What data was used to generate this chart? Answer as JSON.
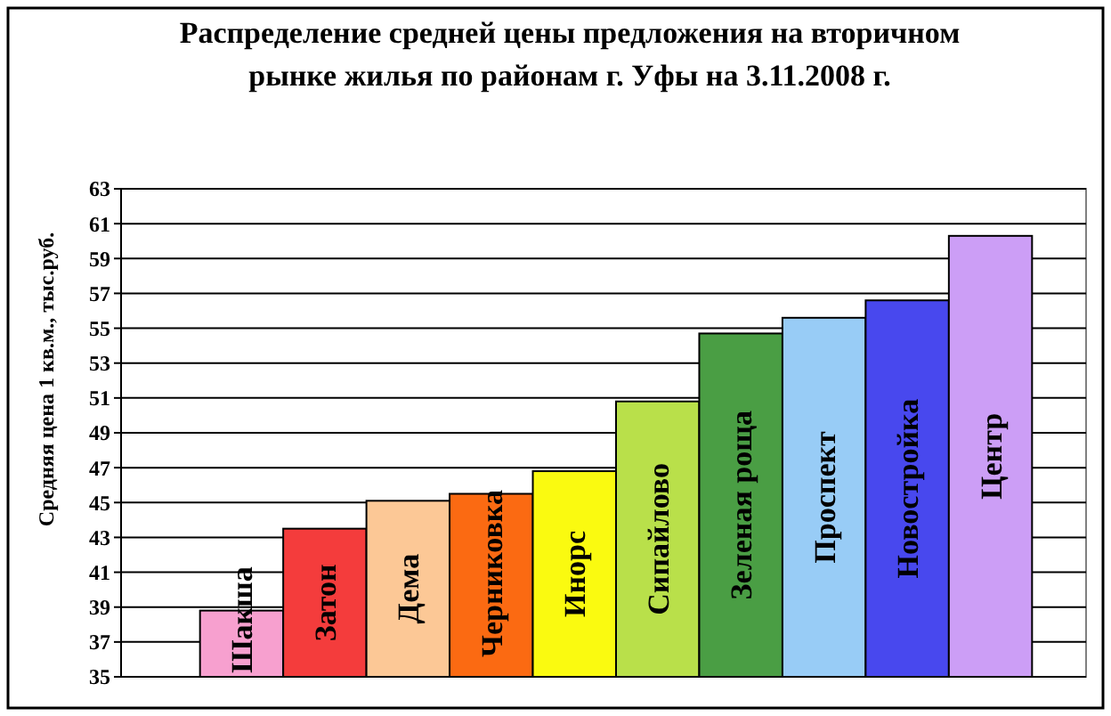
{
  "chart_data": {
    "type": "bar",
    "title": "Распределение средней цены предложения на вторичном\nрынке жилья по районам г. Уфы на 3.11.2008 г.",
    "ylabel": "Средняя цена 1 кв.м., тыс.руб.",
    "categories": [
      "Шакша",
      "Затон",
      "Дема",
      "Черниковка",
      "Инорс",
      "Сипайлово",
      "Зеленая роща",
      "Проспект",
      "Новостройка",
      "Центр"
    ],
    "values": [
      38.8,
      43.5,
      45.1,
      45.5,
      46.8,
      50.8,
      54.7,
      55.6,
      56.6,
      60.3
    ],
    "colors": [
      "#f7a0cf",
      "#f43c3c",
      "#fcc896",
      "#fb6a12",
      "#fafa10",
      "#b9e04a",
      "#4a9e44",
      "#98ccf6",
      "#4848ee",
      "#cc9ef6"
    ],
    "ylim": [
      35,
      63
    ],
    "yticks": [
      35,
      37,
      39,
      41,
      43,
      45,
      47,
      49,
      51,
      53,
      55,
      57,
      59,
      61,
      63
    ],
    "grid": "y"
  }
}
